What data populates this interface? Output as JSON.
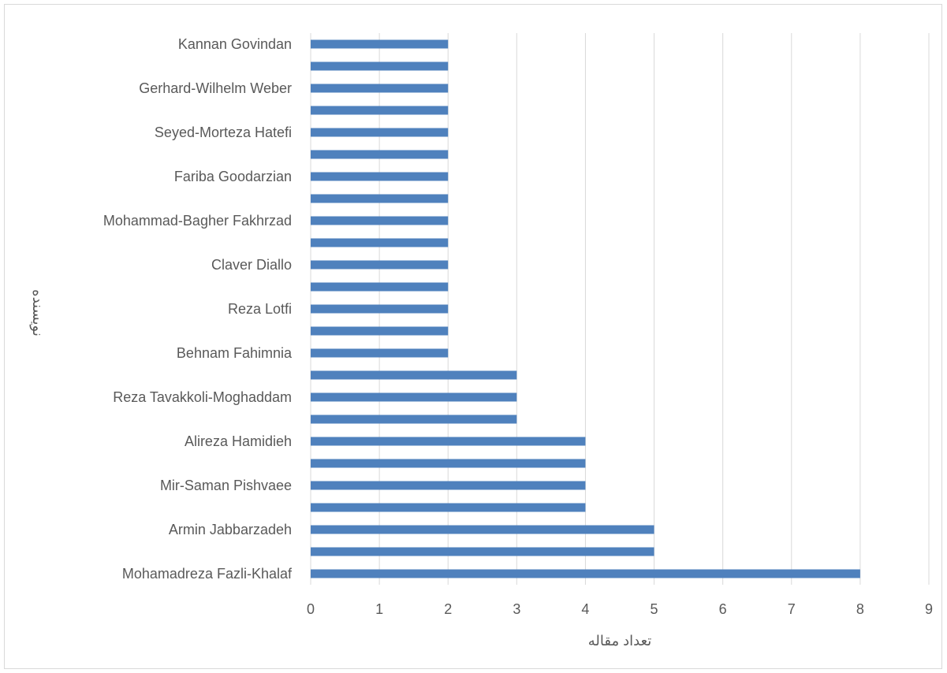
{
  "chart_data": {
    "type": "bar",
    "orientation": "horizontal",
    "categories": [
      "Mohamadreza Fazli-Khalaf",
      "",
      "Armin Jabbarzadeh",
      "",
      "Mir-Saman Pishvaee",
      "",
      "Alireza Hamidieh",
      "",
      "Reza Tavakkoli-Moghaddam",
      "",
      "Behnam Fahimnia",
      "",
      "Reza Lotfi",
      "",
      "Claver Diallo",
      "",
      "Mohammad-Bagher Fakhrzad",
      "",
      "Fariba Goodarzian",
      "",
      "Seyed-Morteza Hatefi",
      "",
      "Gerhard-Wilhelm Weber",
      "",
      "Kannan Govindan"
    ],
    "values": [
      8,
      5,
      5,
      4,
      4,
      4,
      4,
      3,
      3,
      3,
      2,
      2,
      2,
      2,
      2,
      2,
      2,
      2,
      2,
      2,
      2,
      2,
      2,
      2,
      2
    ],
    "xlim": [
      0,
      9
    ],
    "xticks": [
      "0",
      "1",
      "2",
      "3",
      "4",
      "5",
      "6",
      "7",
      "8",
      "9"
    ],
    "xlabel": "تعداد مقاله",
    "ylabel": "نویسنده",
    "grid": "vertical",
    "legend": "none",
    "bar_color": "#4f81bd",
    "grid_color": "#d9d9d9"
  }
}
